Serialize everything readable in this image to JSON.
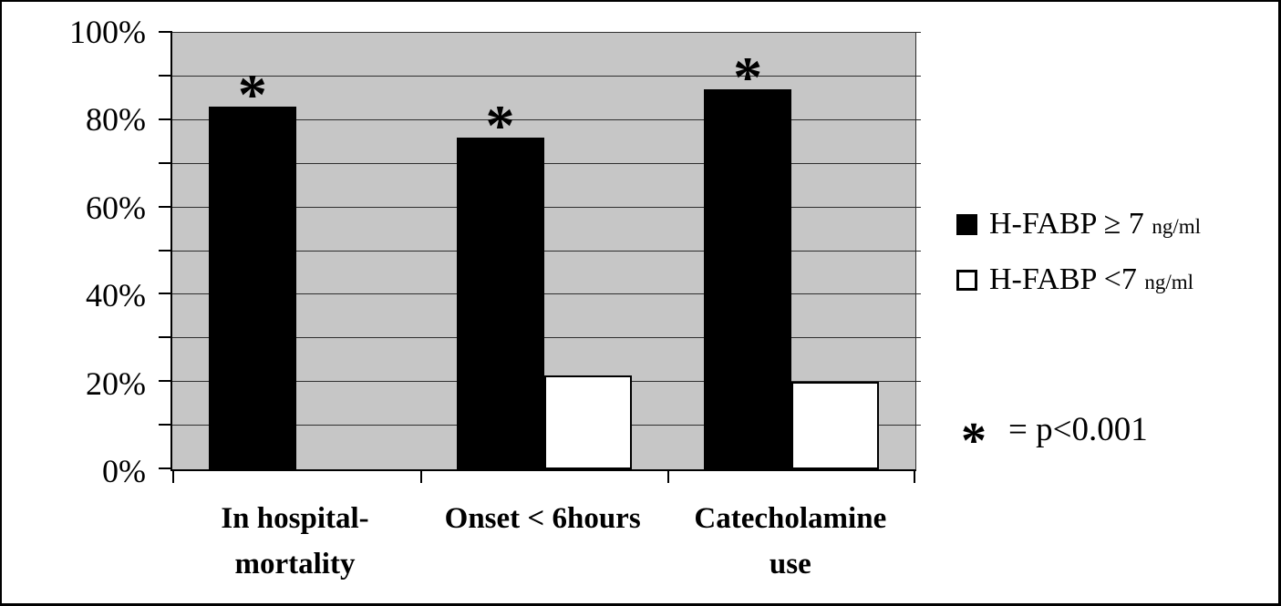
{
  "chart_data": {
    "type": "bar",
    "title": "",
    "xlabel": "",
    "ylabel": "",
    "categories": [
      {
        "line1": "In hospital-",
        "line2": "mortality"
      },
      {
        "line1": "Onset < 6hours",
        "line2": ""
      },
      {
        "line1": "Catecholamine",
        "line2": "use"
      }
    ],
    "series": [
      {
        "name": "H-FABP ≥ 7 ng/ml",
        "color": "#000000",
        "style": "black",
        "values": [
          83,
          76,
          87
        ],
        "significant": [
          true,
          true,
          true
        ]
      },
      {
        "name": "H-FABP <7 ng/ml",
        "color": "#ffffff",
        "style": "white",
        "values": [
          0,
          21.5,
          20
        ],
        "significant": [
          false,
          false,
          false
        ]
      }
    ],
    "y_axis": {
      "tick_labels": [
        "100%",
        "80%",
        "60%",
        "40%",
        "20%",
        "0%"
      ],
      "tick_values": [
        100,
        80,
        60,
        40,
        20,
        0
      ],
      "gridline_step": 10,
      "ylim": [
        0,
        100
      ]
    },
    "significance_marker": "*",
    "grid": true,
    "legend_position": "right",
    "plot_background": "#c6c6c6"
  },
  "legend": {
    "items": [
      {
        "label": "H-FABP ≥ 7",
        "unit": "ng/ml",
        "swatch_color": "#000000"
      },
      {
        "label": "H-FABP <7",
        "unit": "ng/ml",
        "swatch_color": "#ffffff"
      }
    ]
  },
  "annotation": {
    "symbol": "*",
    "text": "= p<0.001"
  },
  "colors": {
    "bar_filled": "#000000",
    "bar_open": "#ffffff",
    "plot_background": "#c6c6c6",
    "gridline": "#2e2e2e",
    "axis": "#000000",
    "figure_border": "#000000"
  }
}
